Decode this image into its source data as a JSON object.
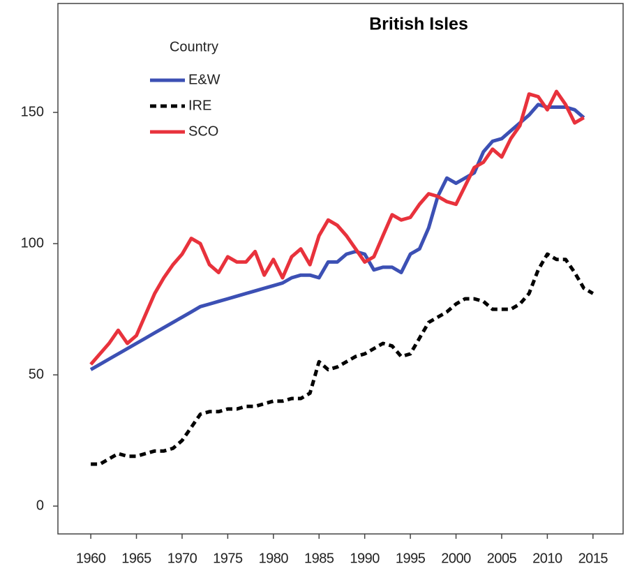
{
  "chart_data": {
    "type": "line",
    "title": "British Isles",
    "legend_title": "Country",
    "x": [
      1960,
      1961,
      1962,
      1963,
      1964,
      1965,
      1966,
      1967,
      1968,
      1969,
      1970,
      1971,
      1972,
      1973,
      1974,
      1975,
      1976,
      1977,
      1978,
      1979,
      1980,
      1981,
      1982,
      1983,
      1984,
      1985,
      1986,
      1987,
      1988,
      1989,
      1990,
      1991,
      1992,
      1993,
      1994,
      1995,
      1996,
      1997,
      1998,
      1999,
      2000,
      2001,
      2002,
      2003,
      2004,
      2005,
      2006,
      2007,
      2008,
      2009,
      2010,
      2011,
      2012,
      2013,
      2014,
      2015
    ],
    "series": [
      {
        "name": "E&W",
        "color": "#3c50b4",
        "style": "solid",
        "values": [
          52,
          54,
          56,
          58,
          60,
          62,
          64,
          66,
          68,
          70,
          72,
          74,
          76,
          77,
          78,
          79,
          80,
          81,
          82,
          83,
          84,
          85,
          87,
          88,
          88,
          87,
          93,
          93,
          96,
          97,
          96,
          90,
          91,
          91,
          89,
          96,
          98,
          106,
          118,
          125,
          123,
          125,
          127,
          135,
          139,
          140,
          143,
          146,
          149,
          153,
          152,
          152,
          152,
          151,
          148,
          null
        ]
      },
      {
        "name": "IRE",
        "color": "#000000",
        "style": "dashed",
        "values": [
          16,
          16,
          18,
          20,
          19,
          19,
          20,
          21,
          21,
          22,
          25,
          30,
          35,
          36,
          36,
          37,
          37,
          38,
          38,
          39,
          40,
          40,
          41,
          41,
          43,
          55,
          52,
          53,
          55,
          57,
          58,
          60,
          62,
          61,
          57,
          58,
          64,
          70,
          72,
          74,
          77,
          79,
          79,
          78,
          75,
          75,
          75,
          77,
          81,
          90,
          96,
          94,
          94,
          89,
          83,
          81
        ]
      },
      {
        "name": "SCO",
        "color": "#e8323c",
        "style": "solid",
        "values": [
          54,
          58,
          62,
          67,
          62,
          65,
          73,
          81,
          87,
          92,
          96,
          102,
          100,
          92,
          89,
          95,
          93,
          93,
          97,
          88,
          94,
          87,
          95,
          98,
          92,
          103,
          109,
          107,
          103,
          98,
          93,
          95,
          103,
          111,
          109,
          110,
          115,
          119,
          118,
          116,
          115,
          122,
          129,
          131,
          136,
          133,
          140,
          145,
          157,
          156,
          151,
          158,
          153,
          146,
          148,
          null
        ]
      }
    ],
    "xlim": [
      1956.4,
      2018.3
    ],
    "xticks": [
      1960,
      1965,
      1970,
      1975,
      1980,
      1985,
      1990,
      1995,
      2000,
      2005,
      2010,
      2015
    ],
    "ylim": [
      -10.6,
      191.5
    ],
    "yticks": [
      0,
      50,
      100,
      150
    ],
    "legend": "upper left",
    "grid": false
  }
}
